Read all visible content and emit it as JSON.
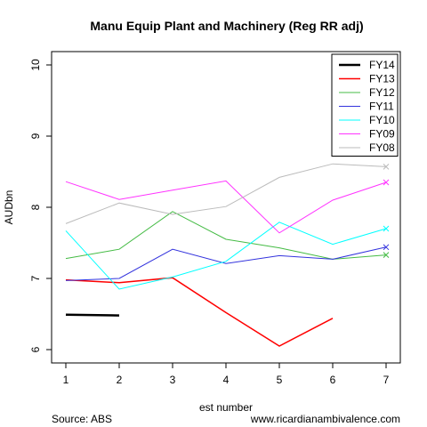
{
  "chart_data": {
    "type": "line",
    "title": "Manu Equip Plant and Machinery (Reg RR adj)",
    "xlabel": "est number",
    "ylabel": "AUDbn",
    "xlim": [
      1,
      7
    ],
    "ylim": [
      6,
      10
    ],
    "xticks": [
      1,
      2,
      3,
      4,
      5,
      6,
      7
    ],
    "yticks": [
      6,
      7,
      8,
      9,
      10
    ],
    "legend_position": "top-right",
    "series": [
      {
        "name": "FY14",
        "color": "#000000",
        "width": 2.5,
        "x": [
          1,
          2
        ],
        "y": [
          6.49,
          6.48
        ]
      },
      {
        "name": "FY13",
        "color": "#ff0000",
        "width": 1.5,
        "x": [
          1,
          2,
          3,
          4,
          5,
          6
        ],
        "y": [
          6.98,
          6.94,
          7.01,
          6.52,
          6.05,
          6.44
        ]
      },
      {
        "name": "FY12",
        "color": "#44bb44",
        "width": 1,
        "x": [
          1,
          2,
          3,
          4,
          5,
          6,
          7
        ],
        "y": [
          7.28,
          7.41,
          7.94,
          7.55,
          7.43,
          7.27,
          7.33
        ]
      },
      {
        "name": "FY11",
        "color": "#3333dd",
        "width": 1,
        "x": [
          1,
          2,
          3,
          4,
          5,
          6,
          7
        ],
        "y": [
          6.97,
          7.0,
          7.41,
          7.21,
          7.32,
          7.27,
          7.44
        ]
      },
      {
        "name": "FY10",
        "color": "#00ffff",
        "width": 1,
        "x": [
          1,
          2,
          3,
          4,
          5,
          6,
          7
        ],
        "y": [
          7.67,
          6.85,
          7.02,
          7.24,
          7.79,
          7.48,
          7.7
        ]
      },
      {
        "name": "FY09",
        "color": "#ff33ff",
        "width": 1,
        "x": [
          1,
          2,
          3,
          4,
          5,
          6,
          7
        ],
        "y": [
          8.36,
          8.11,
          8.24,
          8.37,
          7.64,
          8.1,
          8.35
        ]
      },
      {
        "name": "FY08",
        "color": "#bbbbbb",
        "width": 1,
        "x": [
          1,
          2,
          3,
          4,
          5,
          6,
          7
        ],
        "y": [
          7.77,
          8.06,
          7.9,
          8.01,
          8.42,
          8.61,
          8.57
        ]
      }
    ],
    "end_markers": [
      "FY12",
      "FY11",
      "FY10",
      "FY09",
      "FY08"
    ]
  },
  "footer": {
    "source": "Source: ABS",
    "site": "www.ricardianambivalence.com"
  }
}
